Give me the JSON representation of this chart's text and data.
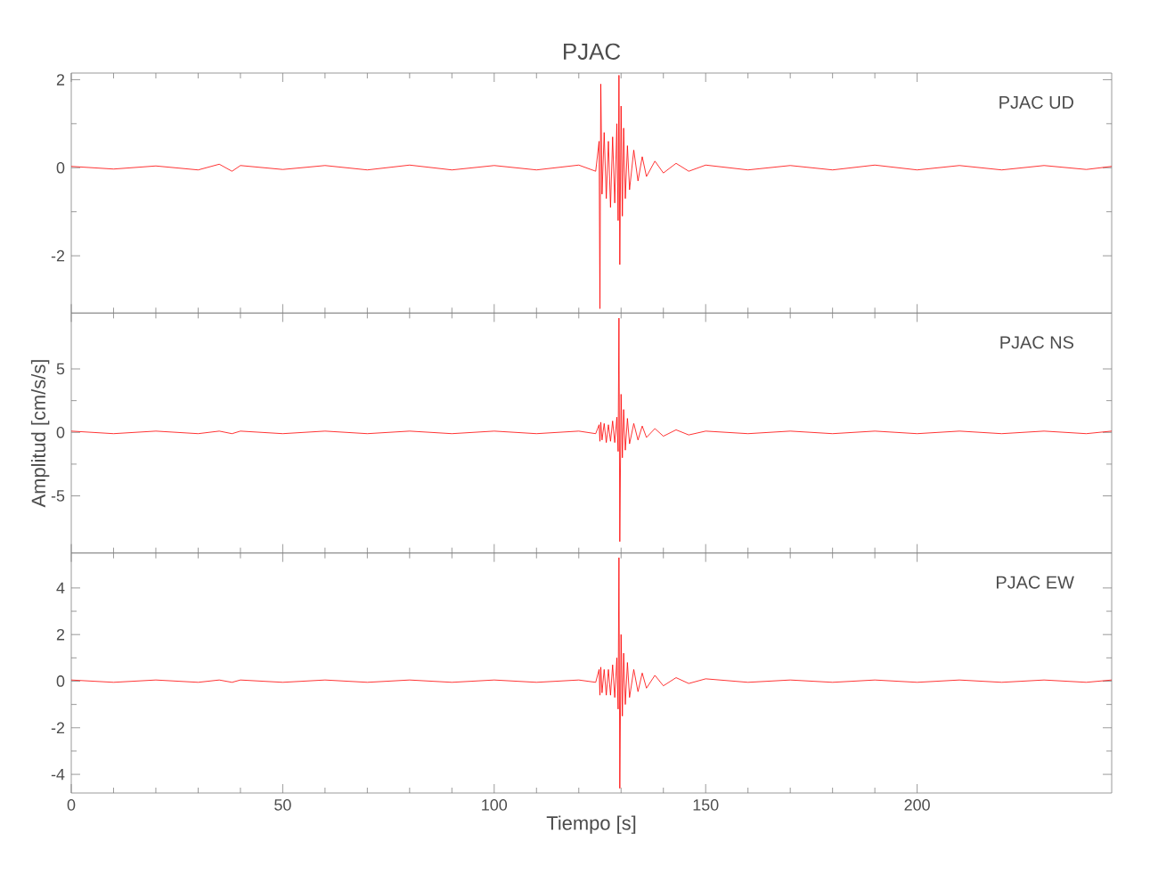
{
  "chart_data": [
    {
      "type": "line",
      "title": "PJAC",
      "annotations": [
        "PJAC UD"
      ],
      "tick_labels": "y",
      "grid": false,
      "marker": "none",
      "x": [
        0,
        10,
        20,
        30,
        35,
        38,
        40,
        50,
        60,
        70,
        80,
        90,
        100,
        110,
        120,
        124,
        124.8,
        125,
        125.2,
        125.5,
        126,
        126.5,
        127,
        127.5,
        128,
        128.5,
        129,
        129.3,
        129.5,
        129.7,
        130,
        130.3,
        130.6,
        131,
        131.5,
        132,
        133,
        134,
        135,
        136,
        138,
        140,
        143,
        146,
        150,
        160,
        170,
        180,
        190,
        200,
        210,
        220,
        230,
        240,
        246
      ],
      "series": [
        {
          "color": "#ff0000",
          "values": [
            0.03,
            -0.03,
            0.04,
            -0.05,
            0.08,
            -0.08,
            0.05,
            -0.04,
            0.05,
            -0.05,
            0.06,
            -0.05,
            0.05,
            -0.05,
            0.06,
            -0.08,
            0.6,
            -3.2,
            1.9,
            -0.6,
            0.8,
            -0.7,
            0.6,
            -0.9,
            0.7,
            -0.8,
            1.0,
            -1.2,
            2.1,
            -2.2,
            1.4,
            -1.1,
            0.9,
            -0.7,
            0.5,
            -0.5,
            0.4,
            -0.3,
            0.25,
            -0.2,
            0.15,
            -0.12,
            0.1,
            -0.08,
            0.06,
            -0.05,
            0.05,
            -0.05,
            0.06,
            -0.05,
            0.05,
            -0.05,
            0.05,
            -0.04,
            0.03
          ]
        }
      ],
      "xlim": [
        0,
        246
      ],
      "xticks": [
        0,
        50,
        100,
        150,
        200
      ],
      "ylim": [
        -3.3,
        2.15
      ],
      "yticks": [
        -2,
        0,
        2
      ]
    },
    {
      "type": "line",
      "ylabel": "Amplitud [cm/s/s]",
      "annotations": [
        "PJAC NS"
      ],
      "tick_labels": "y",
      "grid": false,
      "marker": "none",
      "x": [
        0,
        10,
        20,
        30,
        35,
        38,
        40,
        50,
        60,
        70,
        80,
        90,
        100,
        110,
        120,
        124,
        124.8,
        125,
        125.2,
        125.5,
        126,
        126.5,
        127,
        127.5,
        128,
        128.5,
        129,
        129.3,
        129.5,
        129.7,
        130,
        130.3,
        130.6,
        131,
        131.5,
        132,
        133,
        134,
        135,
        136,
        138,
        140,
        143,
        146,
        150,
        160,
        170,
        180,
        190,
        200,
        210,
        220,
        230,
        240,
        246
      ],
      "series": [
        {
          "color": "#ff0000",
          "values": [
            0.1,
            -0.1,
            0.1,
            -0.1,
            0.1,
            -0.1,
            0.1,
            -0.1,
            0.1,
            -0.1,
            0.1,
            -0.1,
            0.1,
            -0.1,
            0.1,
            -0.1,
            0.6,
            -0.7,
            0.8,
            -0.6,
            0.7,
            -0.8,
            0.6,
            -0.7,
            0.9,
            -0.8,
            1.2,
            -1.5,
            9.0,
            -8.6,
            3.0,
            -2.0,
            1.8,
            -1.4,
            1.1,
            -0.9,
            0.7,
            -0.6,
            0.5,
            -0.4,
            0.3,
            -0.3,
            0.2,
            -0.2,
            0.1,
            -0.1,
            0.1,
            -0.1,
            0.1,
            -0.1,
            0.1,
            -0.1,
            0.1,
            -0.1,
            0.1
          ]
        }
      ],
      "xlim": [
        0,
        246
      ],
      "xticks": [
        0,
        50,
        100,
        150,
        200
      ],
      "ylim": [
        -9.5,
        9.4
      ],
      "yticks": [
        -5,
        0,
        5
      ]
    },
    {
      "type": "line",
      "xlabel": "Tiempo [s]",
      "annotations": [
        "PJAC EW"
      ],
      "grid": false,
      "marker": "none",
      "x": [
        0,
        10,
        20,
        30,
        35,
        38,
        40,
        50,
        60,
        70,
        80,
        90,
        100,
        110,
        120,
        124,
        124.8,
        125,
        125.2,
        125.5,
        126,
        126.5,
        127,
        127.5,
        128,
        128.5,
        129,
        129.3,
        129.5,
        129.7,
        130,
        130.3,
        130.6,
        131,
        131.5,
        132,
        133,
        134,
        135,
        136,
        138,
        140,
        143,
        146,
        150,
        160,
        170,
        180,
        190,
        200,
        210,
        220,
        230,
        240,
        246
      ],
      "series": [
        {
          "color": "#ff0000",
          "values": [
            0.05,
            -0.05,
            0.05,
            -0.05,
            0.05,
            -0.05,
            0.05,
            -0.05,
            0.05,
            -0.05,
            0.05,
            -0.05,
            0.05,
            -0.05,
            0.05,
            -0.05,
            0.5,
            -0.6,
            0.6,
            -0.5,
            0.5,
            -0.6,
            0.5,
            -0.6,
            0.7,
            -0.7,
            1.0,
            -1.2,
            5.3,
            -4.6,
            2.0,
            -1.5,
            1.2,
            -1.0,
            0.8,
            -0.7,
            0.5,
            -0.45,
            0.35,
            -0.3,
            0.25,
            -0.2,
            0.15,
            -0.1,
            0.1,
            -0.05,
            0.05,
            -0.05,
            0.05,
            -0.05,
            0.05,
            -0.05,
            0.05,
            -0.05,
            0.05
          ]
        }
      ],
      "xlim": [
        0,
        246
      ],
      "xticks": [
        0,
        50,
        100,
        150,
        200
      ],
      "ylim": [
        -4.8,
        5.5
      ],
      "yticks": [
        -4,
        -2,
        0,
        2,
        4
      ]
    }
  ]
}
